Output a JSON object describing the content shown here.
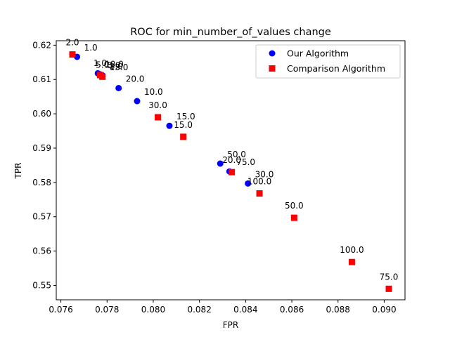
{
  "chart_data": {
    "type": "scatter",
    "title": "ROC for min_number_of_values change",
    "xlabel": "FPR",
    "ylabel": "TPR",
    "xlim": [
      0.0758,
      0.0909
    ],
    "ylim": [
      0.5458,
      0.6213
    ],
    "xticks": [
      0.076,
      0.078,
      0.08,
      0.082,
      0.084,
      0.086,
      0.088,
      0.09
    ],
    "xtick_labels": [
      "0.076",
      "0.078",
      "0.080",
      "0.082",
      "0.084",
      "0.086",
      "0.088",
      "0.090"
    ],
    "yticks": [
      0.55,
      0.56,
      0.57,
      0.58,
      0.59,
      0.6,
      0.61,
      0.62
    ],
    "ytick_labels": [
      "0.55",
      "0.56",
      "0.57",
      "0.58",
      "0.59",
      "0.60",
      "0.61",
      "0.62"
    ],
    "grid": false,
    "legend_position": "top-right",
    "series": [
      {
        "name": "Our Algorithm",
        "marker": "circle",
        "color": "#0000ff",
        "points": [
          {
            "x": 0.0767,
            "y": 0.6166,
            "label": "1.0"
          },
          {
            "x": 0.0776,
            "y": 0.6118,
            "label": "10.0"
          },
          {
            "x": 0.0777,
            "y": 0.6115,
            "label": "5.0"
          },
          {
            "x": 0.0778,
            "y": 0.6112,
            "label": "2.0"
          },
          {
            "x": 0.0778,
            "y": 0.6109,
            "label": "15.0"
          },
          {
            "x": 0.0785,
            "y": 0.6075,
            "label": "20.0"
          },
          {
            "x": 0.0793,
            "y": 0.6037,
            "label": "10.0"
          },
          {
            "x": 0.0807,
            "y": 0.5965,
            "label": "15.0"
          },
          {
            "x": 0.0829,
            "y": 0.5855,
            "label": "50.0"
          },
          {
            "x": 0.0833,
            "y": 0.5832,
            "label": "75.0"
          },
          {
            "x": 0.0841,
            "y": 0.5797,
            "label": "30.0"
          }
        ]
      },
      {
        "name": "Comparison Algorithm",
        "marker": "square",
        "color": "#ff0000",
        "points": [
          {
            "x": 0.0765,
            "y": 0.6173,
            "label": "2.0"
          },
          {
            "x": 0.0777,
            "y": 0.6113,
            "label": "1.0"
          },
          {
            "x": 0.0778,
            "y": 0.6108,
            "label": "5.0"
          },
          {
            "x": 0.0802,
            "y": 0.599,
            "label": "30.0"
          },
          {
            "x": 0.0813,
            "y": 0.5933,
            "label": "15.0"
          },
          {
            "x": 0.0834,
            "y": 0.583,
            "label": "20.0"
          },
          {
            "x": 0.0846,
            "y": 0.5768,
            "label": "100.0"
          },
          {
            "x": 0.0861,
            "y": 0.5697,
            "label": "50.0"
          },
          {
            "x": 0.0886,
            "y": 0.5568,
            "label": "100.0"
          },
          {
            "x": 0.0902,
            "y": 0.549,
            "label": "75.0"
          }
        ]
      }
    ]
  }
}
